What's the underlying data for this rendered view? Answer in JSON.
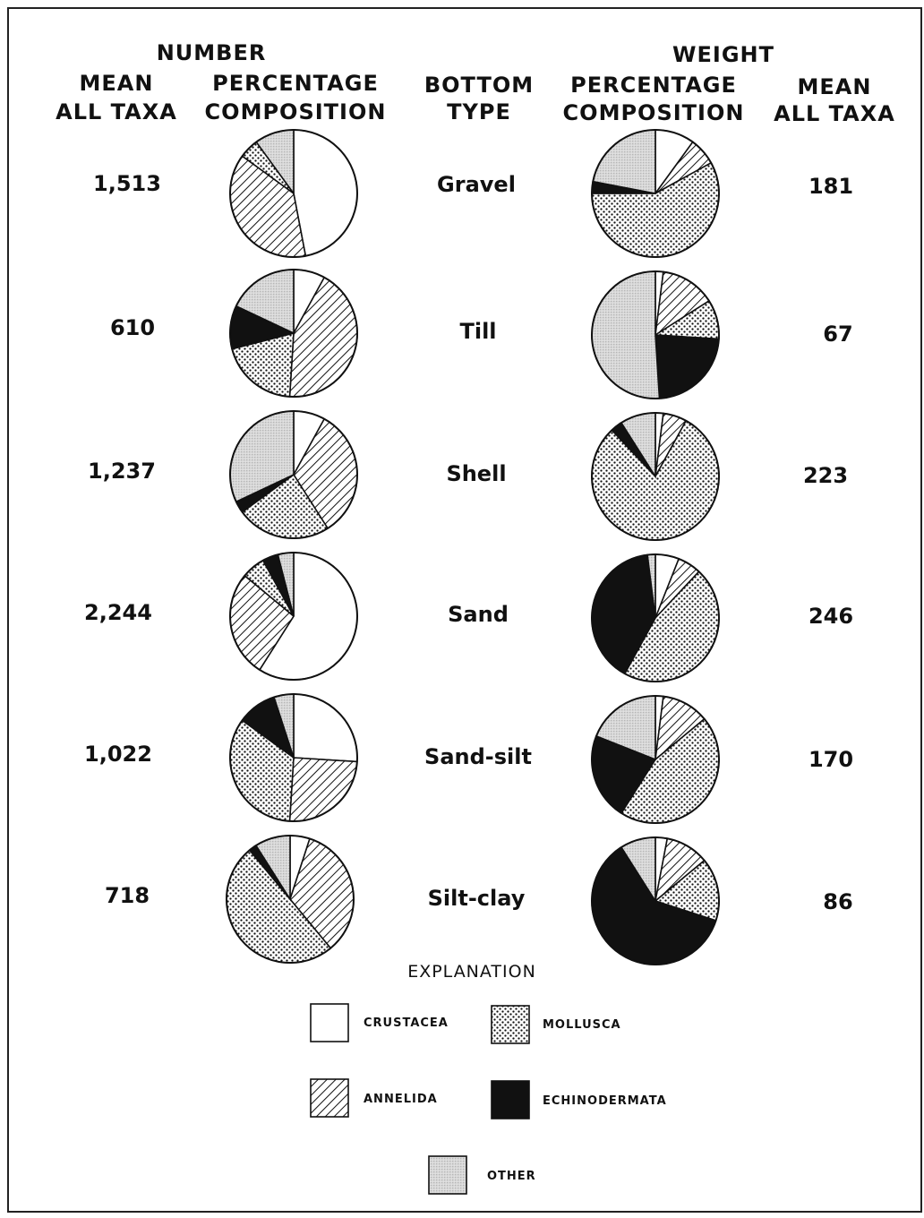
{
  "headers": {
    "number": "NUMBER",
    "weight": "WEIGHT",
    "mean_left": [
      "MEAN",
      "ALL TAXA"
    ],
    "pct_left": [
      "PERCENTAGE",
      "COMPOSITION"
    ],
    "bottom": [
      "BOTTOM",
      "TYPE"
    ],
    "pct_right": [
      "PERCENTAGE",
      "COMPOSITION"
    ],
    "mean_right": [
      "MEAN",
      "ALL TAXA"
    ]
  },
  "legend": {
    "title": "EXPLANATION",
    "items": [
      {
        "label": "CRUSTACEA",
        "pattern": "crustacea"
      },
      {
        "label": "MOLLUSCA",
        "pattern": "mollusca"
      },
      {
        "label": "ANNELIDA",
        "pattern": "annelida"
      },
      {
        "label": "ECHINODERMATA",
        "pattern": "echinodermata"
      },
      {
        "label": "OTHER",
        "pattern": "other"
      }
    ]
  },
  "chart_data": {
    "type": "pie",
    "categories": [
      "CRUSTACEA",
      "ANNELIDA",
      "MOLLUSCA",
      "ECHINODERMATA",
      "OTHER"
    ],
    "rows": [
      {
        "bottom_type": "Gravel",
        "number_mean": "1,513",
        "weight_mean": "181",
        "number_pct": [
          47,
          38,
          5,
          0,
          10
        ],
        "weight_pct": [
          10,
          7,
          58,
          3,
          22
        ]
      },
      {
        "bottom_type": "Till",
        "number_mean": "610",
        "weight_mean": "67",
        "number_pct": [
          8,
          43,
          20,
          11,
          18
        ],
        "weight_pct": [
          2,
          14,
          10,
          23,
          51
        ]
      },
      {
        "bottom_type": "Shell",
        "number_mean": "1,237",
        "weight_mean": "223",
        "number_pct": [
          8,
          33,
          24,
          3,
          32
        ],
        "weight_pct": [
          2,
          6,
          80,
          3,
          9
        ]
      },
      {
        "bottom_type": "Sand",
        "number_mean": "2,244",
        "weight_mean": "246",
        "number_pct": [
          59,
          27,
          6,
          4,
          4
        ],
        "weight_pct": [
          6,
          6,
          46,
          40,
          2
        ]
      },
      {
        "bottom_type": "Sand-silt",
        "number_mean": "1,022",
        "weight_mean": "170",
        "number_pct": [
          26,
          25,
          34,
          10,
          5
        ],
        "weight_pct": [
          2,
          12,
          45,
          22,
          19
        ]
      },
      {
        "bottom_type": "Silt-clay",
        "number_mean": "718",
        "weight_mean": "86",
        "number_pct": [
          5,
          34,
          50,
          2,
          9
        ],
        "weight_pct": [
          3,
          11,
          16,
          61,
          9
        ]
      }
    ]
  },
  "colors": {
    "ink": "#111111",
    "paper": "#ffffff",
    "other_fill": "#d9d9d9"
  }
}
